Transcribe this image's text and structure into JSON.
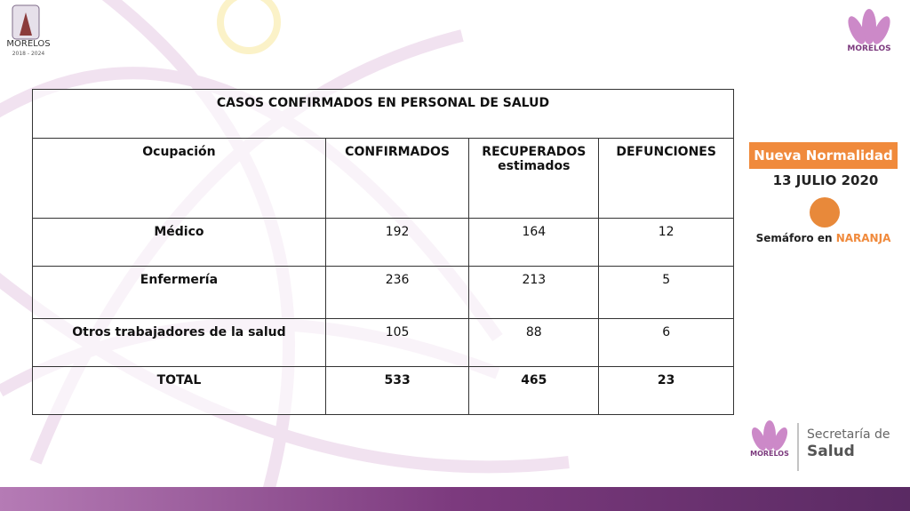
{
  "logos": {
    "left": {
      "name": "MORELOS",
      "years": "2018 - 2024"
    },
    "top_right": {
      "name": "MORELOS"
    },
    "bottom_right": {
      "name": "MORELOS",
      "department_line1": "Secretaría de",
      "department_line2": "Salud"
    }
  },
  "table": {
    "title": "CASOS CONFIRMADOS EN PERSONAL DE SALUD",
    "headers": [
      "Ocupación",
      "CONFIRMADOS",
      "RECUPERADOS estimados",
      "DEFUNCIONES"
    ],
    "rows": [
      [
        "Médico",
        192,
        164,
        12
      ],
      [
        "Enfermería",
        236,
        213,
        5
      ],
      [
        "Otros trabajadores de la salud",
        105,
        88,
        6
      ],
      [
        "TOTAL",
        533,
        465,
        23
      ]
    ]
  },
  "status": {
    "badge": "Nueva Normalidad",
    "date": "13 JULIO 2020",
    "light_prefix": "Semáforo en",
    "light_color": "NARANJA"
  }
}
